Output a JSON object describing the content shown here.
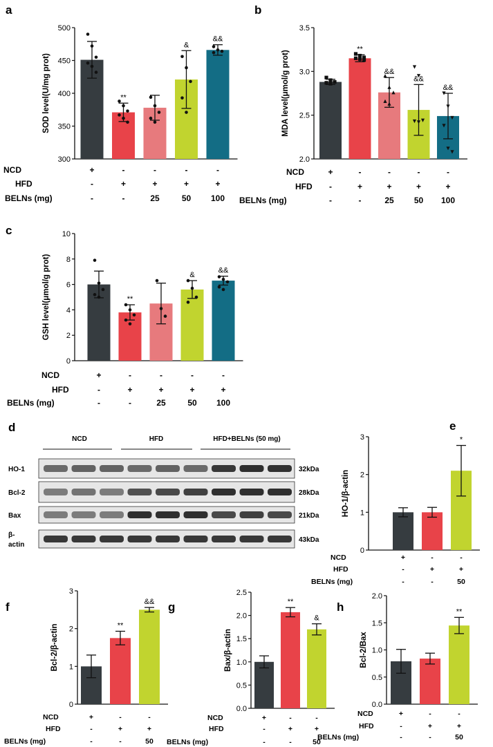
{
  "colors": {
    "NCD": "#363c40",
    "HFD": "#e84349",
    "BELNs25": "#e77a7d",
    "BELNs50": "#c1d42f",
    "BELNs100": "#136d85"
  },
  "condition_labels": {
    "ncd": "NCD",
    "hfd": "HFD",
    "belns": "BELNs (mg)"
  },
  "chart_data": [
    {
      "panel": "a",
      "type": "bar",
      "ylabel": "SOD level(U/mg prot)",
      "ylim": [
        300,
        500
      ],
      "yticks": [
        300,
        350,
        400,
        450,
        500
      ],
      "categories": [
        "NCD",
        "HFD",
        "BELNs 25",
        "BELNs 50",
        "BELNs 100"
      ],
      "values": [
        451,
        371,
        378,
        421,
        466
      ],
      "errors": [
        28,
        14,
        19,
        44,
        8
      ],
      "significance": [
        "",
        "**",
        "",
        "&",
        "&&"
      ],
      "points": [
        [
          490,
          472,
          455,
          446,
          441,
          432
        ],
        [
          388,
          381,
          373,
          367,
          362,
          356
        ],
        [
          394,
          381,
          371,
          362,
          356
        ],
        [
          456,
          439,
          418,
          393,
          371
        ],
        [
          471,
          466,
          464,
          462
        ]
      ],
      "conditions": {
        "NCD": [
          "+",
          "-",
          "-",
          "-",
          "-"
        ],
        "HFD": [
          "-",
          "+",
          "+",
          "+",
          "+"
        ],
        "BELNs": [
          "-",
          "-",
          "25",
          "50",
          "100"
        ]
      }
    },
    {
      "panel": "b",
      "type": "bar",
      "ylabel": "MDA level(μmol/g prot)",
      "ylim": [
        2.0,
        3.5
      ],
      "yticks": [
        "2.0",
        "2.5",
        "3.0",
        "3.5"
      ],
      "categories": [
        "NCD",
        "HFD",
        "BELNs 25",
        "BELNs 50",
        "BELNs 100"
      ],
      "values": [
        2.88,
        3.15,
        2.76,
        2.56,
        2.49
      ],
      "errors": [
        0.03,
        0.04,
        0.17,
        0.29,
        0.26
      ],
      "significance": [
        "",
        "**",
        "&&",
        "&&",
        "&&"
      ],
      "points": [
        [
          2.93,
          2.9,
          2.88,
          2.87,
          2.86
        ],
        [
          3.2,
          3.18,
          3.16,
          3.15,
          3.14,
          3.13
        ],
        [
          2.95,
          2.82,
          2.76,
          2.66,
          2.63
        ],
        [
          3.05,
          2.95,
          2.44,
          2.43,
          2.42
        ],
        [
          2.75,
          2.6,
          2.47,
          2.38,
          2.12,
          2.08
        ]
      ],
      "conditions": {
        "NCD": [
          "+",
          "-",
          "-",
          "-",
          "-"
        ],
        "HFD": [
          "-",
          "+",
          "+",
          "+",
          "+"
        ],
        "BELNs": [
          "-",
          "-",
          "25",
          "50",
          "100"
        ]
      }
    },
    {
      "panel": "c",
      "type": "bar",
      "ylabel": "GSH level(μmol/g prot)",
      "ylim": [
        0,
        10
      ],
      "yticks": [
        0,
        2,
        4,
        6,
        8,
        10
      ],
      "categories": [
        "NCD",
        "HFD",
        "BELNs 25",
        "BELNs 50",
        "BELNs 100"
      ],
      "values": [
        6.0,
        3.8,
        4.5,
        5.6,
        6.3
      ],
      "errors": [
        1.05,
        0.6,
        1.6,
        0.7,
        0.35
      ],
      "significance": [
        "",
        "**",
        "",
        "&",
        "&&"
      ],
      "points": [
        [
          7.9,
          6.1,
          5.6,
          5.2,
          5.0
        ],
        [
          4.4,
          4.0,
          3.6,
          3.2,
          2.9
        ],
        [
          6.3,
          4.1,
          3.5
        ],
        [
          6.3,
          5.7,
          5.0,
          4.6
        ],
        [
          6.6,
          6.4,
          6.2,
          5.8,
          5.6
        ]
      ],
      "conditions": {
        "NCD": [
          "+",
          "-",
          "-",
          "-",
          "-"
        ],
        "HFD": [
          "-",
          "+",
          "+",
          "+",
          "+"
        ],
        "BELNs": [
          "-",
          "-",
          "25",
          "50",
          "100"
        ]
      }
    },
    {
      "panel": "e",
      "type": "bar",
      "ylabel": "HO-1/β-actin",
      "ylim": [
        0,
        3
      ],
      "yticks": [
        0,
        1,
        2,
        3
      ],
      "categories": [
        "NCD",
        "HFD",
        "BELNs 50"
      ],
      "values": [
        1.0,
        1.0,
        2.1
      ],
      "errors": [
        0.12,
        0.13,
        0.67
      ],
      "significance": [
        "",
        "",
        "*"
      ],
      "conditions": {
        "NCD": [
          "+",
          "-",
          "-"
        ],
        "HFD": [
          "-",
          "+",
          "+"
        ],
        "BELNs": [
          "-",
          "-",
          "50"
        ]
      }
    },
    {
      "panel": "f",
      "type": "bar",
      "ylabel": "Bcl-2/β-actin",
      "ylim": [
        0,
        3
      ],
      "yticks": [
        0,
        1,
        2,
        3
      ],
      "categories": [
        "NCD",
        "HFD",
        "BELNs 50"
      ],
      "values": [
        1.0,
        1.75,
        2.5
      ],
      "errors": [
        0.3,
        0.18,
        0.06
      ],
      "significance": [
        "",
        "**",
        "&&"
      ],
      "conditions": {
        "NCD": [
          "+",
          "-",
          "-"
        ],
        "HFD": [
          "-",
          "+",
          "+"
        ],
        "BELNs": [
          "-",
          "-",
          "50"
        ]
      }
    },
    {
      "panel": "g",
      "type": "bar",
      "ylabel": "Bax/β-actin",
      "ylim": [
        0,
        2.5
      ],
      "yticks": [
        "0.0",
        "0.5",
        "1.0",
        "1.5",
        "2.0",
        "2.5"
      ],
      "categories": [
        "NCD",
        "HFD",
        "BELNs 50"
      ],
      "values": [
        1.0,
        2.07,
        1.7
      ],
      "errors": [
        0.13,
        0.1,
        0.12
      ],
      "significance": [
        "",
        "**",
        "&"
      ],
      "conditions": {
        "NCD": [
          "+",
          "-",
          "-"
        ],
        "HFD": [
          "-",
          "+",
          "+"
        ],
        "BELNs": [
          "-",
          "-",
          "50"
        ]
      }
    },
    {
      "panel": "h",
      "type": "bar",
      "ylabel": "Bcl-2/Bax",
      "ylim": [
        0,
        2.0
      ],
      "yticks": [
        "0.0",
        "0.5",
        "1.0",
        "1.5",
        "2.0"
      ],
      "categories": [
        "NCD",
        "HFD",
        "BELNs 50"
      ],
      "values": [
        0.79,
        0.84,
        1.45
      ],
      "errors": [
        0.22,
        0.1,
        0.15
      ],
      "significance": [
        "",
        "",
        "**"
      ],
      "conditions": {
        "NCD": [
          "+",
          "-",
          "-"
        ],
        "HFD": [
          "-",
          "+",
          "+"
        ],
        "BELNs": [
          "-",
          "-",
          "50"
        ]
      }
    }
  ],
  "western_blot": {
    "panel": "d",
    "groups": [
      "NCD",
      "HFD",
      "HFD+BELNs (50 mg)"
    ],
    "bands": [
      {
        "protein": "HO-1",
        "size": "32kDa",
        "intensity": [
          0.55,
          0.6,
          0.6,
          0.55,
          0.6,
          0.55,
          0.85,
          0.9,
          0.88
        ]
      },
      {
        "protein": "Bcl-2",
        "size": "28kDa",
        "intensity": [
          0.45,
          0.5,
          0.45,
          0.7,
          0.75,
          0.8,
          0.9,
          0.9,
          0.9
        ]
      },
      {
        "protein": "Bax",
        "size": "21kDa",
        "intensity": [
          0.45,
          0.45,
          0.45,
          0.9,
          0.9,
          0.9,
          0.75,
          0.8,
          0.75
        ]
      },
      {
        "protein": "β-\nactin",
        "size": "43kDa",
        "intensity": [
          0.85,
          0.85,
          0.85,
          0.85,
          0.85,
          0.85,
          0.85,
          0.85,
          0.85
        ]
      }
    ]
  }
}
